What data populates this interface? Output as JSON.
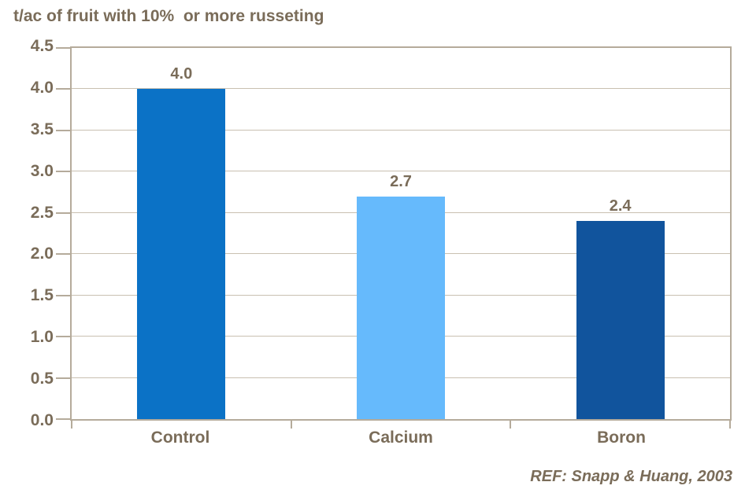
{
  "title": "t/ac of fruit with 10%  or more russeting",
  "reference": "REF: Snapp & Huang, 2003",
  "colors": {
    "text": "#7A6C59",
    "axis": "#B5AB9B",
    "gridline": "#C9C0B1",
    "background": "#FFFFFF",
    "bar_control": "#0B72C6",
    "bar_calcium": "#66BAFC",
    "bar_boron": "#11549D"
  },
  "chart_data": {
    "type": "bar",
    "title": "t/ac of fruit with 10%  or more russeting",
    "categories": [
      "Control",
      "Calcium",
      "Boron"
    ],
    "values": [
      4.0,
      2.7,
      2.4
    ],
    "data_labels": [
      "4.0",
      "2.7",
      "2.4"
    ],
    "bar_colors": [
      "#0B72C6",
      "#66BAFC",
      "#11549D"
    ],
    "xlabel": "",
    "ylabel": "t/ac of fruit with 10% or more russeting",
    "ylim": [
      0,
      4.5
    ],
    "ytick_step": 0.5,
    "yticks": [
      "0.0",
      "0.5",
      "1.0",
      "1.5",
      "2.0",
      "2.5",
      "3.0",
      "3.5",
      "4.0",
      "4.5"
    ],
    "grid": true,
    "legend": false,
    "annotation": "REF: Snapp & Huang, 2003"
  }
}
